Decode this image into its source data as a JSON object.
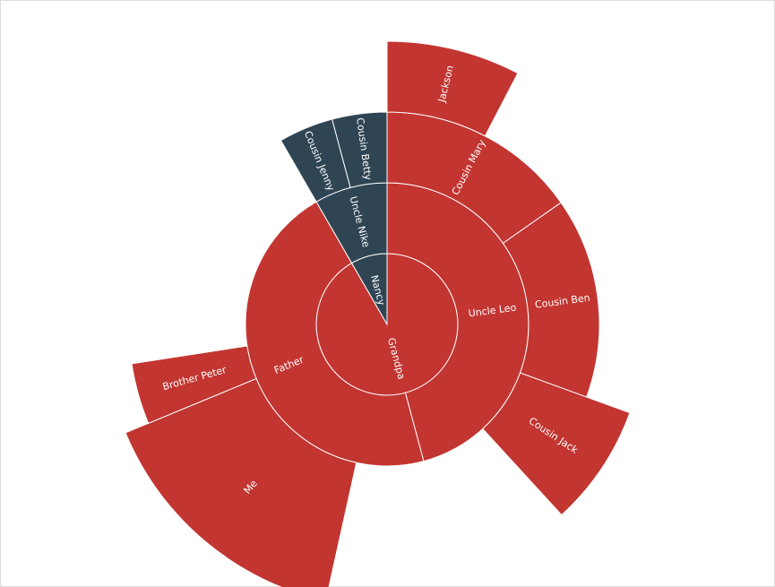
{
  "chart_data": {
    "type": "sunburst",
    "title": "",
    "colors": {
      "red": "#c23531",
      "navy": "#2f4554"
    },
    "nodes": [
      {
        "name": "Nancy",
        "level": 1,
        "start_deg": 330,
        "end_deg": 360,
        "color": "navy",
        "children": [
          {
            "name": "Uncle Nike",
            "level": 2,
            "start_deg": 330,
            "end_deg": 360,
            "color": "navy",
            "children": [
              {
                "name": "Cousin Jenny",
                "level": 3,
                "start_deg": 330,
                "end_deg": 345,
                "color": "navy"
              },
              {
                "name": "Cousin Betty",
                "level": 3,
                "start_deg": 345,
                "end_deg": 360,
                "color": "navy"
              }
            ]
          }
        ]
      },
      {
        "name": "Grandpa",
        "level": 1,
        "start_deg": 0,
        "end_deg": 330,
        "color": "red",
        "children": [
          {
            "name": "Uncle Leo",
            "level": 2,
            "start_deg": 0,
            "end_deg": 165,
            "color": "red",
            "children": [
              {
                "name": "Cousin Mary",
                "level": 3,
                "start_deg": 0,
                "end_deg": 55,
                "color": "red",
                "children": [
                  {
                    "name": "Jackson",
                    "level": 4,
                    "start_deg": 0,
                    "end_deg": 27.5,
                    "color": "red"
                  }
                ]
              },
              {
                "name": "Cousin Ben",
                "level": 3,
                "start_deg": 55,
                "end_deg": 110,
                "color": "red"
              },
              {
                "name": "Cousin Jack",
                "level": 3,
                "start_deg": 110,
                "end_deg": 137.5,
                "color": "red",
                "outer_level": 3.65
              }
            ]
          },
          {
            "name": "Father",
            "level": 2,
            "start_deg": 165,
            "end_deg": 330,
            "color": "red",
            "children": [
              {
                "name": "Me",
                "level": 3,
                "start_deg": 192.5,
                "end_deg": 247.5,
                "color": "red",
                "outer_level": 4
              },
              {
                "name": "Brother Peter",
                "level": 3,
                "start_deg": 247.5,
                "end_deg": 261.25,
                "color": "red",
                "outer_level": 3.65
              }
            ]
          }
        ]
      }
    ]
  }
}
